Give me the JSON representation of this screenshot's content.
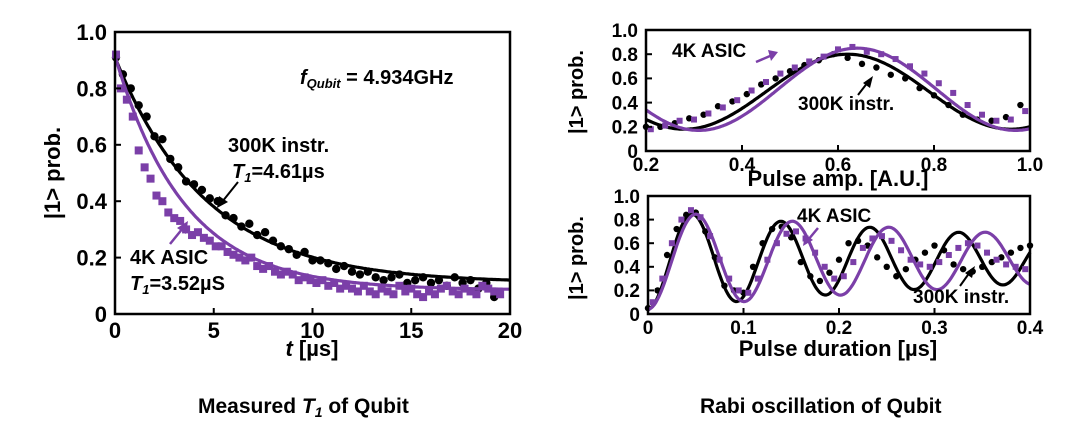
{
  "captions": {
    "left_main": "Measured ",
    "left_sym": "T",
    "left_sub": "1",
    "left_rest": " of Qubit",
    "right": "Rabi oscillation of Qubit"
  },
  "colors": {
    "asic": "#7b3fa8",
    "instr": "#000000"
  },
  "chart_data": [
    {
      "id": "t1",
      "type": "scatter",
      "xlabel_sym": "t",
      "xlabel_rest": " [µs]",
      "ylabel": "|1> prob.",
      "xlim": [
        0,
        20
      ],
      "ylim": [
        0,
        1.0
      ],
      "xticks": [
        "0",
        "5",
        "10",
        "15",
        "20"
      ],
      "yticks": [
        "0",
        "0.2",
        "0.4",
        "0.6",
        "0.8",
        "1.0"
      ],
      "annotation": {
        "sym": "f",
        "sub": "Qubit",
        "rest": " = 4.934GHz"
      },
      "series": [
        {
          "name": "300K instr.",
          "color": "#000000",
          "marker": "circle",
          "fit": {
            "model": "exp",
            "amp": 0.8,
            "tau": 4.61,
            "offset": 0.11
          },
          "x": [
            0.05,
            0.4,
            0.8,
            1.2,
            1.6,
            2.0,
            2.4,
            2.8,
            3.2,
            3.6,
            4.0,
            4.4,
            4.8,
            5.2,
            5.6,
            6.0,
            6.4,
            6.8,
            7.2,
            7.6,
            8.0,
            8.4,
            8.8,
            9.2,
            9.6,
            10.0,
            10.4,
            10.8,
            11.2,
            11.6,
            12.0,
            12.4,
            12.8,
            13.2,
            13.6,
            14.0,
            14.4,
            14.8,
            15.2,
            15.6,
            16.0,
            16.4,
            16.8,
            17.2,
            17.6,
            18.0,
            18.4,
            18.8,
            19.2
          ],
          "y": [
            0.91,
            0.85,
            0.8,
            0.74,
            0.7,
            0.63,
            0.62,
            0.55,
            0.52,
            0.47,
            0.46,
            0.44,
            0.41,
            0.4,
            0.35,
            0.34,
            0.31,
            0.32,
            0.28,
            0.29,
            0.26,
            0.24,
            0.23,
            0.21,
            0.22,
            0.19,
            0.19,
            0.18,
            0.16,
            0.17,
            0.15,
            0.14,
            0.15,
            0.13,
            0.12,
            0.13,
            0.14,
            0.11,
            0.12,
            0.13,
            0.11,
            0.12,
            0.1,
            0.13,
            0.11,
            0.12,
            0.09,
            0.11,
            0.06
          ],
          "label": {
            "line1": "300K instr.",
            "sym": "T",
            "sub": "1",
            "rest": "=4.61µs"
          }
        },
        {
          "name": "4K ASIC",
          "color": "#7b3fa8",
          "marker": "square",
          "fit": {
            "model": "exp",
            "amp": 0.83,
            "tau": 3.52,
            "offset": 0.085
          },
          "x": [
            0.05,
            0.3,
            0.6,
            0.9,
            1.2,
            1.5,
            1.8,
            2.1,
            2.4,
            2.7,
            3.0,
            3.3,
            3.6,
            3.9,
            4.2,
            4.5,
            4.8,
            5.1,
            5.4,
            5.7,
            6.0,
            6.3,
            6.6,
            6.9,
            7.2,
            7.5,
            7.8,
            8.1,
            8.4,
            8.7,
            9.0,
            9.3,
            9.6,
            9.9,
            10.2,
            10.5,
            10.8,
            11.1,
            11.4,
            11.7,
            12.0,
            12.3,
            12.6,
            12.9,
            13.2,
            13.5,
            13.8,
            14.1,
            14.4,
            14.7,
            15.0,
            15.3,
            15.6,
            15.9,
            16.2,
            16.5,
            16.8,
            17.1,
            17.4,
            17.7,
            18.0,
            18.3,
            18.6,
            18.9,
            19.2,
            19.5
          ],
          "y": [
            0.92,
            0.8,
            0.76,
            0.7,
            0.58,
            0.52,
            0.48,
            0.42,
            0.4,
            0.36,
            0.34,
            0.33,
            0.3,
            0.28,
            0.29,
            0.27,
            0.26,
            0.24,
            0.24,
            0.22,
            0.21,
            0.2,
            0.19,
            0.2,
            0.17,
            0.16,
            0.17,
            0.15,
            0.14,
            0.15,
            0.14,
            0.12,
            0.13,
            0.12,
            0.11,
            0.12,
            0.1,
            0.11,
            0.09,
            0.1,
            0.09,
            0.08,
            0.1,
            0.08,
            0.07,
            0.09,
            0.08,
            0.07,
            0.1,
            0.08,
            0.09,
            0.07,
            0.06,
            0.08,
            0.07,
            0.09,
            0.1,
            0.08,
            0.07,
            0.09,
            0.08,
            0.07,
            0.1,
            0.09,
            0.08,
            0.07
          ],
          "label": {
            "line1": "4K ASIC",
            "sym": "T",
            "sub": "1",
            "rest": "=3.52µS"
          }
        }
      ]
    },
    {
      "id": "rabi_amp",
      "type": "scatter",
      "xlabel": "Pulse amp. [A.U.]",
      "ylabel": "|1> prob.",
      "xlim": [
        0.2,
        1.0
      ],
      "ylim": [
        0,
        1.0
      ],
      "xticks": [
        "0.2",
        "0.4",
        "0.6",
        "0.8",
        "1.0"
      ],
      "yticks": [
        "0",
        "0.2",
        "0.4",
        "0.6",
        "0.8",
        "1.0"
      ],
      "series": [
        {
          "name": "300K instr.",
          "color": "#000000",
          "marker": "circle",
          "fit": {
            "model": "cos",
            "offset": 0.49,
            "amp": 0.31,
            "center": 0.62,
            "period": 0.68
          },
          "x": [
            0.2,
            0.23,
            0.26,
            0.29,
            0.32,
            0.35,
            0.38,
            0.41,
            0.44,
            0.47,
            0.5,
            0.53,
            0.56,
            0.59,
            0.62,
            0.65,
            0.68,
            0.71,
            0.74,
            0.77,
            0.8,
            0.83,
            0.86,
            0.89,
            0.92,
            0.95,
            0.98
          ],
          "y": [
            0.2,
            0.2,
            0.23,
            0.27,
            0.3,
            0.37,
            0.41,
            0.47,
            0.55,
            0.6,
            0.66,
            0.71,
            0.75,
            0.8,
            0.77,
            0.72,
            0.69,
            0.63,
            0.6,
            0.52,
            0.46,
            0.38,
            0.3,
            0.26,
            0.25,
            0.28,
            0.38
          ],
          "label": {
            "text": "300K instr."
          }
        },
        {
          "name": "4K ASIC",
          "color": "#7b3fa8",
          "marker": "square",
          "fit": {
            "model": "cos",
            "offset": 0.51,
            "amp": 0.34,
            "center": 0.64,
            "period": 0.66
          },
          "x": [
            0.21,
            0.24,
            0.27,
            0.3,
            0.33,
            0.36,
            0.39,
            0.42,
            0.45,
            0.48,
            0.51,
            0.54,
            0.57,
            0.6,
            0.63,
            0.66,
            0.69,
            0.72,
            0.75,
            0.78,
            0.81,
            0.84,
            0.87,
            0.9,
            0.93,
            0.96,
            0.99
          ],
          "y": [
            0.18,
            0.21,
            0.25,
            0.26,
            0.31,
            0.36,
            0.42,
            0.5,
            0.57,
            0.64,
            0.69,
            0.74,
            0.78,
            0.84,
            0.86,
            0.82,
            0.8,
            0.76,
            0.7,
            0.64,
            0.56,
            0.48,
            0.38,
            0.3,
            0.25,
            0.26,
            0.33
          ],
          "label": {
            "text": "4K ASIC"
          }
        }
      ]
    },
    {
      "id": "rabi_dur",
      "type": "scatter",
      "xlabel": "Pulse duration [µs]",
      "ylabel": "|1> prob.",
      "xlim": [
        0,
        0.4
      ],
      "ylim": [
        0,
        1.0
      ],
      "xticks": [
        "0",
        "0.1",
        "0.2",
        "0.3",
        "0.4"
      ],
      "yticks": [
        "0",
        "0.2",
        "0.4",
        "0.6",
        "0.8",
        "1.0"
      ],
      "series": [
        {
          "name": "300K instr.",
          "color": "#000000",
          "marker": "circle",
          "fit": {
            "model": "rabi",
            "offset": 0.46,
            "amp": 0.42,
            "freq": 10.75,
            "tau": 0.55,
            "inf": 0.45
          },
          "x": [
            0.0,
            0.01,
            0.02,
            0.03,
            0.04,
            0.05,
            0.06,
            0.07,
            0.08,
            0.09,
            0.1,
            0.11,
            0.12,
            0.13,
            0.14,
            0.15,
            0.16,
            0.17,
            0.18,
            0.19,
            0.2,
            0.21,
            0.22,
            0.23,
            0.24,
            0.25,
            0.26,
            0.27,
            0.28,
            0.29,
            0.3,
            0.31,
            0.32,
            0.33,
            0.34,
            0.35,
            0.36,
            0.37,
            0.38,
            0.39,
            0.4
          ],
          "y": [
            0.05,
            0.2,
            0.5,
            0.72,
            0.84,
            0.86,
            0.7,
            0.48,
            0.24,
            0.2,
            0.18,
            0.4,
            0.6,
            0.72,
            0.74,
            0.65,
            0.44,
            0.32,
            0.28,
            0.35,
            0.46,
            0.6,
            0.62,
            0.58,
            0.48,
            0.4,
            0.32,
            0.38,
            0.46,
            0.52,
            0.58,
            0.54,
            0.42,
            0.38,
            0.36,
            0.4,
            0.44,
            0.48,
            0.52,
            0.56,
            0.58
          ],
          "label": {
            "text": "300K instr."
          }
        },
        {
          "name": "4K ASIC",
          "color": "#7b3fa8",
          "marker": "square",
          "fit": {
            "model": "rabi",
            "offset": 0.46,
            "amp": 0.42,
            "freq": 9.9,
            "tau": 0.6,
            "inf": 0.42
          },
          "x": [
            0.005,
            0.015,
            0.025,
            0.035,
            0.045,
            0.055,
            0.065,
            0.075,
            0.085,
            0.095,
            0.105,
            0.115,
            0.125,
            0.135,
            0.145,
            0.155,
            0.165,
            0.175,
            0.185,
            0.195,
            0.205,
            0.215,
            0.225,
            0.235,
            0.245,
            0.255,
            0.265,
            0.275,
            0.285,
            0.295,
            0.305,
            0.315,
            0.325,
            0.335,
            0.345,
            0.355,
            0.365,
            0.375,
            0.385,
            0.395
          ],
          "y": [
            0.1,
            0.3,
            0.6,
            0.8,
            0.88,
            0.82,
            0.66,
            0.46,
            0.3,
            0.2,
            0.18,
            0.3,
            0.46,
            0.6,
            0.68,
            0.7,
            0.64,
            0.52,
            0.4,
            0.3,
            0.32,
            0.44,
            0.56,
            0.64,
            0.66,
            0.62,
            0.54,
            0.46,
            0.42,
            0.4,
            0.44,
            0.5,
            0.56,
            0.6,
            0.58,
            0.52,
            0.46,
            0.42,
            0.4,
            0.38
          ],
          "label": {
            "text": "4K ASIC"
          }
        }
      ]
    }
  ]
}
